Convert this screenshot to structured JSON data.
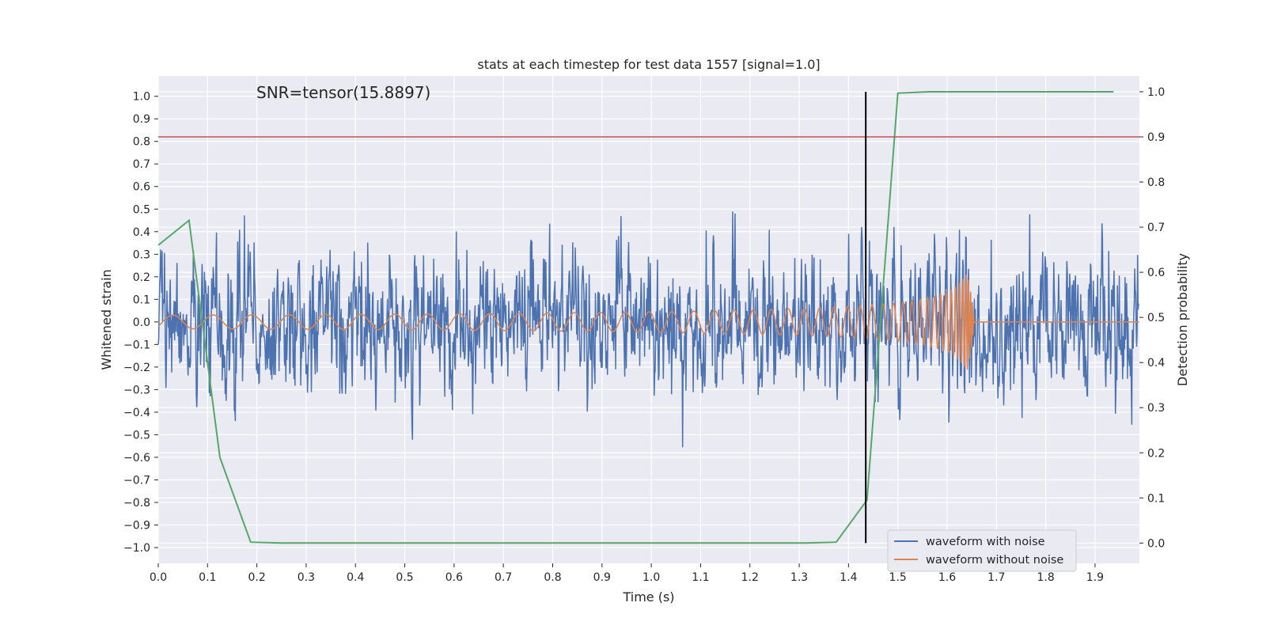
{
  "chart_data": {
    "type": "line",
    "title": "stats at each timestep for test data 1557 [signal=1.0]",
    "xlabel": "Time (s)",
    "ylabel": "Whitened strain",
    "ylabel_right": "Detection probability",
    "annotation": "SNR=tensor(15.8897)",
    "xlim": [
      0.0,
      1.99
    ],
    "ylim": [
      -1.07,
      1.09
    ],
    "ylim_right": [
      -0.045,
      1.035
    ],
    "xticks": [
      "0.0",
      "0.1",
      "0.2",
      "0.3",
      "0.4",
      "0.5",
      "0.6",
      "0.7",
      "0.8",
      "0.9",
      "1.0",
      "1.1",
      "1.2",
      "1.3",
      "1.4",
      "1.5",
      "1.6",
      "1.7",
      "1.8",
      "1.9"
    ],
    "yticks_left": [
      "1.0",
      "0.9",
      "0.8",
      "0.7",
      "0.6",
      "0.5",
      "0.4",
      "0.3",
      "0.2",
      "0.1",
      "0.0",
      "−0.1",
      "−0.2",
      "−0.3",
      "−0.4",
      "−0.5",
      "−0.6",
      "−0.7",
      "−0.8",
      "−0.9",
      "−1.0"
    ],
    "yticks_right": [
      "1.0",
      "0.9",
      "0.8",
      "0.7",
      "0.6",
      "0.5",
      "0.4",
      "0.3",
      "0.2",
      "0.1",
      "0.0"
    ],
    "grid": true,
    "legend_position": "lower-right",
    "threshold": {
      "y_right": 0.9,
      "color": "#c44e52"
    },
    "detection_marker": {
      "x": 1.435,
      "y_right": [
        0.0,
        1.0
      ],
      "color": "#000000"
    },
    "series": [
      {
        "name": "waveform with noise",
        "axis": "left",
        "color": "#4c72b0",
        "kind": "noise",
        "sample_rate": 1024,
        "amplitude_std": 0.2
      },
      {
        "name": "waveform without noise",
        "axis": "left",
        "color": "#dd8452",
        "kind": "chirp",
        "end_time": 1.655,
        "peak_time": 1.64,
        "peak_amplitude": 0.76,
        "base_amplitude": 0.03
      },
      {
        "name": "",
        "axis": "right",
        "color": "#55a868",
        "kind": "probability",
        "x": [
          0.0,
          0.0625,
          0.125,
          0.1875,
          0.25,
          0.3125,
          0.375,
          0.4375,
          0.5,
          0.5625,
          0.625,
          0.6875,
          0.75,
          0.8125,
          0.875,
          0.9375,
          1.0,
          1.0625,
          1.125,
          1.1875,
          1.25,
          1.3125,
          1.375,
          1.4375,
          1.5,
          1.5625,
          1.625,
          1.6875,
          1.75,
          1.8125,
          1.875,
          1.9375
        ],
        "values": [
          0.66,
          0.715,
          0.19,
          0.002,
          0.0,
          0.0,
          0.0,
          0.0,
          0.0,
          0.0,
          0.0,
          0.0,
          0.0,
          0.0,
          0.0,
          0.0,
          0.0,
          0.0,
          0.0,
          0.0,
          0.0,
          0.0,
          0.002,
          0.095,
          0.997,
          1.0,
          1.0,
          1.0,
          1.0,
          1.0,
          1.0,
          1.0
        ]
      }
    ]
  }
}
